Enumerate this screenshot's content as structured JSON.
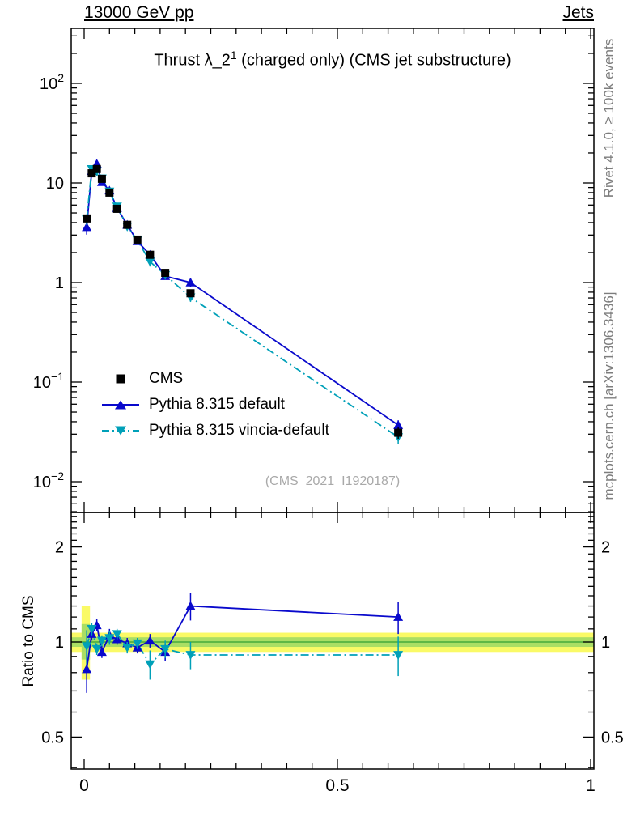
{
  "header": {
    "left": "13000 GeV pp",
    "right": "Jets"
  },
  "side": {
    "top": "Rivet 4.1.0, ≥ 100k events",
    "bottom": "mcplots.cern.ch [arXiv:1306.3436]"
  },
  "chart_data": {
    "type": "line",
    "title": {
      "prefix": "Thrust λ_2",
      "sup": "1",
      "suffix": " (charged only) (CMS jet substructure)"
    },
    "watermark": "(CMS_2021_I1920187)",
    "ratio_ylabel": "Ratio to CMS",
    "xlabel": "",
    "legend_position": "middle-left",
    "grid": false,
    "x": [
      0.005,
      0.015,
      0.025,
      0.035,
      0.05,
      0.065,
      0.085,
      0.105,
      0.13,
      0.16,
      0.21,
      0.62
    ],
    "series": [
      {
        "name": "CMS",
        "marker": "square",
        "color": "#000000",
        "line": "none",
        "values": [
          4.4,
          12.5,
          13.8,
          11.0,
          8.0,
          5.5,
          3.8,
          2.7,
          1.9,
          1.25,
          0.78,
          0.031
        ],
        "err_frac": [
          0.06,
          0.04,
          0.04,
          0.04,
          0.04,
          0.04,
          0.04,
          0.04,
          0.05,
          0.05,
          0.07,
          0.13
        ]
      },
      {
        "name": "Pythia 8.315 default",
        "marker": "triangle-up",
        "color": "#0909cc",
        "line": "solid",
        "values": [
          3.6,
          13.2,
          15.6,
          10.2,
          8.4,
          5.6,
          3.8,
          2.6,
          1.9,
          1.16,
          1.0,
          0.037
        ],
        "ratio": [
          0.82,
          1.06,
          1.13,
          0.93,
          1.05,
          1.02,
          0.99,
          0.96,
          1.01,
          0.93,
          1.3,
          1.2
        ],
        "ratio_err": [
          0.13,
          0.05,
          0.05,
          0.04,
          0.05,
          0.04,
          0.04,
          0.04,
          0.05,
          0.06,
          0.13,
          0.14
        ]
      },
      {
        "name": "Pythia 8.315 vincia-default",
        "marker": "triangle-down",
        "color": "#00a0b8",
        "line": "dashdot",
        "values": [
          4.3,
          13.8,
          13.1,
          11.1,
          8.2,
          5.8,
          3.65,
          2.67,
          1.62,
          1.19,
          0.71,
          0.028
        ],
        "ratio": [
          0.97,
          1.1,
          0.95,
          1.01,
          1.03,
          1.06,
          0.96,
          0.99,
          0.85,
          0.95,
          0.91,
          0.91
        ],
        "ratio_err": [
          0.12,
          0.05,
          0.04,
          0.04,
          0.05,
          0.04,
          0.04,
          0.04,
          0.09,
          0.06,
          0.09,
          0.13
        ]
      }
    ],
    "ratio_bands": [
      {
        "x0": -0.0256,
        "x1": 1.0064,
        "lo": 0.93,
        "hi": 1.07,
        "color": "#fafa66"
      },
      {
        "x0": -0.005,
        "x1": 0.0115,
        "lo": 0.76,
        "hi": 1.3,
        "color": "#fafa66"
      },
      {
        "x0": -0.0256,
        "x1": 1.0064,
        "lo": 0.965,
        "hi": 1.035,
        "color": "#aade64"
      },
      {
        "x0": -0.005,
        "x1": 0.0115,
        "lo": 0.88,
        "hi": 1.14,
        "color": "#aade64"
      }
    ],
    "ratio_line": {
      "v": 1,
      "color": "#33a033"
    },
    "axes": {
      "x": {
        "min": -0.0256,
        "max": 1.0064,
        "minor_step": 0.05,
        "ticks": [
          {
            "v": 0,
            "label": "0"
          },
          {
            "v": 0.5,
            "label": "0.5"
          },
          {
            "v": 1,
            "label": "1"
          }
        ]
      },
      "y_main": {
        "scale": "log",
        "min": 0.0049,
        "max": 357,
        "ticks": [
          {
            "v": 100,
            "label": "10^2"
          },
          {
            "v": 10,
            "label": "10"
          },
          {
            "v": 1,
            "label": "1"
          },
          {
            "v": 0.1,
            "label": "10^-1"
          },
          {
            "v": 0.01,
            "label": "10^-2"
          }
        ]
      },
      "y_ratio": {
        "scale": "log",
        "min": 0.396,
        "max": 2.573,
        "ticks": [
          {
            "v": 2,
            "label": "2"
          },
          {
            "v": 1,
            "label": "1"
          },
          {
            "v": 0.5,
            "label": "0.5"
          }
        ]
      }
    }
  }
}
